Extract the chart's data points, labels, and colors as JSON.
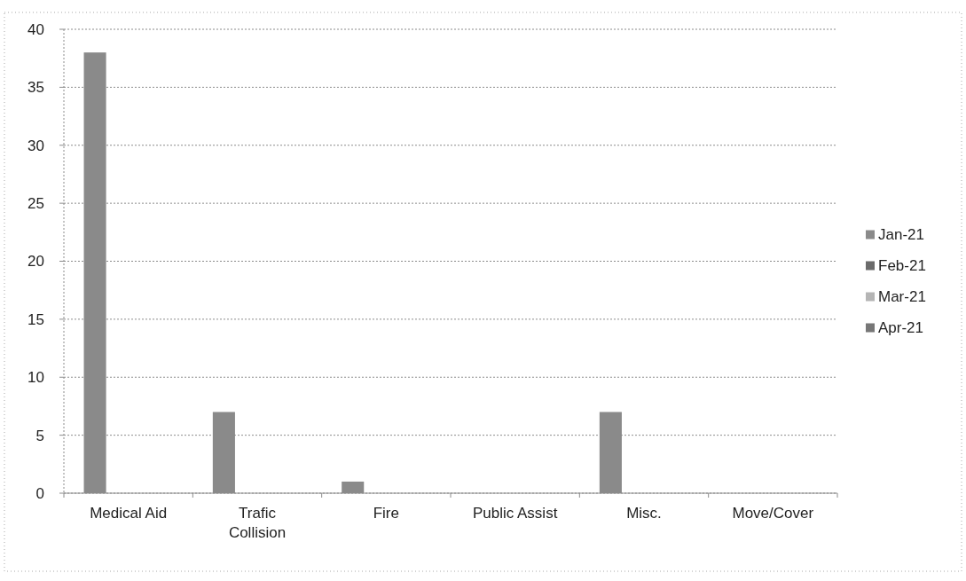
{
  "chart_data": {
    "type": "bar",
    "categories": [
      "Medical Aid",
      "Trafic Collision",
      "Fire",
      "Public Assist",
      "Misc.",
      "Move/Cover"
    ],
    "series": [
      {
        "name": "Jan-21",
        "color": "#8a8a8a",
        "values": [
          38,
          7,
          1,
          null,
          7,
          null
        ]
      },
      {
        "name": "Feb-21",
        "color": "#6b6b6b",
        "values": [
          null,
          null,
          null,
          null,
          null,
          null
        ]
      },
      {
        "name": "Mar-21",
        "color": "#b5b5b5",
        "values": [
          null,
          null,
          null,
          null,
          null,
          null
        ]
      },
      {
        "name": "Apr-21",
        "color": "#777777",
        "values": [
          null,
          null,
          null,
          null,
          null,
          null
        ]
      }
    ],
    "ylim": [
      0,
      40
    ],
    "yticks": [
      0,
      5,
      10,
      15,
      20,
      25,
      30,
      35,
      40
    ],
    "grid": "y",
    "legend": "right"
  }
}
